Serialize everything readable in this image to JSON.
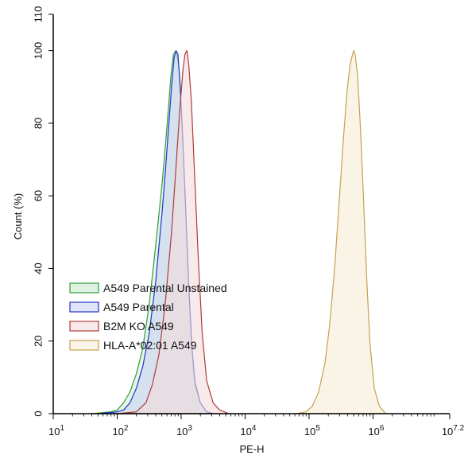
{
  "chart_data": {
    "type": "area",
    "title": "",
    "xlabel": "PE-H",
    "ylabel": "Count (%)",
    "x_scale": "log10",
    "xlim": [
      1,
      7.2
    ],
    "ylim": [
      0,
      110
    ],
    "x_ticks": [
      {
        "base": "10",
        "exp": "1",
        "value": 1
      },
      {
        "base": "10",
        "exp": "2",
        "value": 2
      },
      {
        "base": "10",
        "exp": "3",
        "value": 3
      },
      {
        "base": "10",
        "exp": "4",
        "value": 4
      },
      {
        "base": "10",
        "exp": "5",
        "value": 5
      },
      {
        "base": "10",
        "exp": "6",
        "value": 6
      },
      {
        "base": "10",
        "exp": "7.2",
        "value": 7.2
      }
    ],
    "y_ticks": [
      "0",
      "20",
      "40",
      "60",
      "80",
      "100",
      "110"
    ],
    "y_tick_values": [
      0,
      20,
      40,
      60,
      80,
      100,
      110
    ],
    "legend_position": "lower-left",
    "series": [
      {
        "name": "A549 Parental Unstained",
        "stroke": "#2e9e3e",
        "fill": "#c9e7cc",
        "fill_opacity": 0.45,
        "log10_x": [
          1.6,
          1.9,
          2.0,
          2.1,
          2.2,
          2.3,
          2.4,
          2.5,
          2.6,
          2.7,
          2.75,
          2.8,
          2.84,
          2.88,
          2.92,
          2.96,
          3.0,
          3.05,
          3.1,
          3.15,
          3.2,
          3.3,
          3.4,
          3.5
        ],
        "y": [
          0,
          0.5,
          1,
          3,
          6,
          11,
          18,
          30,
          46,
          63,
          73,
          84,
          93,
          99,
          100,
          96,
          85,
          65,
          42,
          22,
          10,
          3,
          0.5,
          0
        ]
      },
      {
        "name": "A549 Parental",
        "stroke": "#2233cc",
        "fill": "#c9d3f2",
        "fill_opacity": 0.6,
        "log10_x": [
          1.7,
          2.0,
          2.1,
          2.2,
          2.3,
          2.4,
          2.5,
          2.6,
          2.7,
          2.75,
          2.8,
          2.85,
          2.89,
          2.92,
          2.95,
          2.98,
          3.02,
          3.07,
          3.12,
          3.17,
          3.22,
          3.3,
          3.4,
          3.5
        ],
        "y": [
          0,
          0.5,
          1,
          3,
          7,
          13,
          22,
          36,
          55,
          66,
          78,
          90,
          98,
          100,
          99,
          92,
          78,
          57,
          35,
          18,
          8,
          3,
          0.5,
          0
        ]
      },
      {
        "name": "B2M KO A549",
        "stroke": "#b03a3a",
        "fill": "#f4dcdc",
        "fill_opacity": 0.6,
        "log10_x": [
          2.0,
          2.3,
          2.45,
          2.55,
          2.65,
          2.75,
          2.85,
          2.92,
          2.98,
          3.03,
          3.06,
          3.09,
          3.12,
          3.16,
          3.21,
          3.27,
          3.33,
          3.4,
          3.5,
          3.6,
          3.75
        ],
        "y": [
          0,
          0.5,
          3,
          8,
          16,
          30,
          50,
          68,
          84,
          95,
          99,
          100,
          96,
          86,
          66,
          42,
          22,
          9,
          3,
          1,
          0
        ]
      },
      {
        "name": "HLA-A*02:01 A549",
        "stroke": "#c8a050",
        "fill": "#f8f2e2",
        "fill_opacity": 0.85,
        "log10_x": [
          4.8,
          4.95,
          5.05,
          5.15,
          5.25,
          5.32,
          5.4,
          5.47,
          5.53,
          5.59,
          5.64,
          5.68,
          5.7,
          5.72,
          5.76,
          5.8,
          5.85,
          5.9,
          5.95,
          6.02,
          6.1,
          6.2
        ],
        "y": [
          0,
          0.5,
          2,
          6,
          14,
          24,
          40,
          58,
          74,
          88,
          96,
          99,
          100,
          99,
          93,
          80,
          60,
          38,
          20,
          7,
          2,
          0
        ]
      }
    ]
  }
}
